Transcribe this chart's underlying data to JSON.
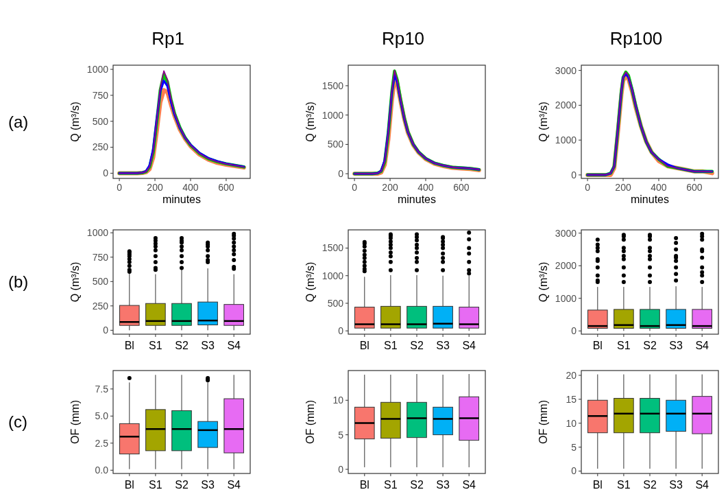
{
  "chart_data": [
    {
      "type": "line",
      "title": "Rp1",
      "annotations": [
        "(a)"
      ],
      "xlabel": "minutes",
      "ylabel": "Q (m³/s)",
      "xlim": [
        -35,
        735
      ],
      "xticks": [
        0,
        200,
        400,
        600
      ],
      "ylim": [
        -50,
        1040
      ],
      "yticks": [
        0,
        250,
        500,
        750,
        1000
      ],
      "x": [
        0,
        100,
        130,
        150,
        170,
        190,
        210,
        230,
        250,
        270,
        290,
        310,
        340,
        370,
        400,
        450,
        500,
        550,
        600,
        650,
        700
      ],
      "series": [
        {
          "color": "#ff7f50",
          "values": [
            0,
            0,
            3,
            10,
            40,
            150,
            400,
            680,
            800,
            780,
            660,
            550,
            420,
            330,
            260,
            180,
            130,
            100,
            82,
            68,
            55
          ]
        },
        {
          "color": "#00cc00",
          "values": [
            0,
            0,
            5,
            15,
            60,
            200,
            490,
            800,
            950,
            880,
            710,
            575,
            440,
            340,
            270,
            190,
            140,
            110,
            90,
            75,
            60
          ]
        },
        {
          "color": "#0000ff",
          "values": [
            0,
            0,
            6,
            20,
            75,
            230,
            520,
            790,
            890,
            840,
            690,
            565,
            435,
            340,
            275,
            195,
            145,
            115,
            92,
            77,
            62
          ]
        },
        {
          "color": "#8b008b",
          "values": [
            0,
            0,
            5,
            15,
            60,
            200,
            500,
            820,
            985,
            900,
            720,
            580,
            440,
            340,
            270,
            190,
            140,
            110,
            90,
            75,
            60
          ]
        }
      ]
    },
    {
      "type": "line",
      "title": "Rp10",
      "xlabel": "minutes",
      "ylabel": "Q (m³/s)",
      "xlim": [
        -35,
        735
      ],
      "xticks": [
        0,
        200,
        400,
        600
      ],
      "ylim": [
        -80,
        1850
      ],
      "yticks": [
        0,
        500,
        1000,
        1500
      ],
      "x": [
        0,
        100,
        130,
        150,
        170,
        190,
        210,
        225,
        240,
        260,
        280,
        300,
        330,
        360,
        400,
        450,
        500,
        550,
        600,
        650,
        700
      ],
      "series": [
        {
          "color": "#ff7f50",
          "values": [
            0,
            0,
            0,
            20,
            150,
            580,
            1250,
            1600,
            1540,
            1220,
            930,
            700,
            490,
            360,
            250,
            170,
            130,
            100,
            90,
            80,
            60
          ]
        },
        {
          "color": "#00cc00",
          "values": [
            0,
            0,
            10,
            40,
            200,
            700,
            1390,
            1750,
            1600,
            1250,
            950,
            720,
            500,
            370,
            260,
            180,
            140,
            110,
            100,
            90,
            70
          ]
        },
        {
          "color": "#0000ff",
          "values": [
            0,
            0,
            10,
            50,
            230,
            720,
            1380,
            1680,
            1560,
            1230,
            940,
            710,
            500,
            370,
            260,
            180,
            140,
            110,
            100,
            90,
            70
          ]
        },
        {
          "color": "#8b008b",
          "values": [
            0,
            0,
            10,
            40,
            200,
            700,
            1400,
            1760,
            1600,
            1250,
            950,
            720,
            500,
            370,
            260,
            180,
            140,
            110,
            100,
            90,
            70
          ]
        }
      ]
    },
    {
      "type": "line",
      "title": "Rp100",
      "xlabel": "minutes",
      "ylabel": "Q (m³/s)",
      "xlim": [
        -35,
        735
      ],
      "xticks": [
        0,
        200,
        400,
        600
      ],
      "ylim": [
        -100,
        3150
      ],
      "yticks": [
        0,
        1000,
        2000,
        3000
      ],
      "x": [
        0,
        100,
        130,
        150,
        170,
        190,
        200,
        215,
        230,
        250,
        270,
        300,
        330,
        360,
        400,
        450,
        500,
        550,
        600,
        650,
        700
      ],
      "series": [
        {
          "color": "#ff7f50",
          "values": [
            0,
            0,
            0,
            200,
            1200,
            2300,
            2700,
            2850,
            2750,
            2400,
            1950,
            1400,
            950,
            650,
            400,
            250,
            200,
            150,
            100,
            100,
            50
          ]
        },
        {
          "color": "#00cc00",
          "values": [
            0,
            0,
            50,
            250,
            1300,
            2400,
            2800,
            2950,
            2850,
            2450,
            2000,
            1400,
            950,
            650,
            450,
            250,
            200,
            150,
            100,
            100,
            100
          ]
        },
        {
          "color": "#0000ff",
          "values": [
            0,
            0,
            50,
            250,
            1300,
            2400,
            2800,
            2900,
            2800,
            2450,
            2000,
            1400,
            950,
            650,
            450,
            300,
            200,
            150,
            100,
            100,
            100
          ]
        },
        {
          "color": "#8b008b",
          "values": [
            0,
            0,
            50,
            250,
            1300,
            2400,
            2800,
            2950,
            2850,
            2450,
            2000,
            1400,
            950,
            650,
            450,
            250,
            200,
            150,
            100,
            100,
            100
          ]
        }
      ]
    },
    {
      "type": "box",
      "annotations": [
        "(b)"
      ],
      "ylabel": "Q (m³/s)",
      "categories": [
        "Bl",
        "S1",
        "S2",
        "S3",
        "S4"
      ],
      "colors": [
        "#f8766d",
        "#a3a500",
        "#00bf7d",
        "#00b0f6",
        "#e76bf3"
      ],
      "ylim": [
        -40,
        1030
      ],
      "yticks": [
        0,
        250,
        500,
        750,
        1000
      ],
      "boxes": [
        {
          "low": 0,
          "q1": 50,
          "median": 85,
          "q3": 255,
          "high": 590,
          "outliers": [
            600,
            620,
            660,
            700,
            730,
            760,
            780,
            800,
            810
          ]
        },
        {
          "low": 0,
          "q1": 50,
          "median": 95,
          "q3": 275,
          "high": 575,
          "outliers": [
            620,
            640,
            700,
            760,
            820,
            860,
            890,
            920,
            945
          ]
        },
        {
          "low": 0,
          "q1": 50,
          "median": 95,
          "q3": 275,
          "high": 630,
          "outliers": [
            640,
            700,
            760,
            820,
            860,
            900,
            920,
            945
          ]
        },
        {
          "low": 0,
          "q1": 55,
          "median": 100,
          "q3": 290,
          "high": 635,
          "outliers": [
            700,
            720,
            760,
            820,
            860,
            880,
            900
          ]
        },
        {
          "low": 0,
          "q1": 50,
          "median": 95,
          "q3": 265,
          "high": 575,
          "outliers": [
            630,
            650,
            720,
            780,
            820,
            860,
            900,
            940,
            970,
            990
          ]
        }
      ]
    },
    {
      "type": "box",
      "ylabel": "Q (m³/s)",
      "categories": [
        "Bl",
        "S1",
        "S2",
        "S3",
        "S4"
      ],
      "colors": [
        "#f8766d",
        "#a3a500",
        "#00bf7d",
        "#00b0f6",
        "#e76bf3"
      ],
      "ylim": [
        -60,
        1830
      ],
      "yticks": [
        0,
        500,
        1000,
        1500
      ],
      "boxes": [
        {
          "low": 0,
          "q1": 50,
          "median": 120,
          "q3": 430,
          "high": 980,
          "outliers": [
            1080,
            1120,
            1180,
            1250,
            1320,
            1380,
            1450,
            1530,
            1580,
            1610
          ]
        },
        {
          "low": 0,
          "q1": 50,
          "median": 120,
          "q3": 445,
          "high": 1010,
          "outliers": [
            1100,
            1250,
            1350,
            1420,
            1500,
            1560,
            1620,
            1680,
            1720,
            1750
          ]
        },
        {
          "low": 0,
          "q1": 50,
          "median": 120,
          "q3": 445,
          "high": 1010,
          "outliers": [
            1100,
            1250,
            1320,
            1420,
            1500,
            1560,
            1640,
            1700,
            1750
          ]
        },
        {
          "low": 0,
          "q1": 50,
          "median": 130,
          "q3": 445,
          "high": 1000,
          "outliers": [
            1100,
            1250,
            1320,
            1400,
            1500,
            1560,
            1620,
            1680,
            1700
          ]
        },
        {
          "low": 0,
          "q1": 50,
          "median": 120,
          "q3": 430,
          "high": 1000,
          "outliers": [
            1040,
            1100,
            1250,
            1400,
            1500,
            1660,
            1780
          ]
        }
      ]
    },
    {
      "type": "box",
      "ylabel": "Q (m³/s)",
      "categories": [
        "Bl",
        "S1",
        "S2",
        "S3",
        "S4"
      ],
      "colors": [
        "#f8766d",
        "#a3a500",
        "#00bf7d",
        "#00b0f6",
        "#e76bf3"
      ],
      "ylim": [
        -100,
        3100
      ],
      "yticks": [
        0,
        1000,
        2000,
        3000
      ],
      "boxes": [
        {
          "low": 0,
          "q1": 80,
          "median": 150,
          "q3": 640,
          "high": 1350,
          "outliers": [
            1500,
            1550,
            1700,
            1950,
            2150,
            2200,
            2450,
            2550,
            2650,
            2800
          ]
        },
        {
          "low": 0,
          "q1": 80,
          "median": 180,
          "q3": 660,
          "high": 1350,
          "outliers": [
            1500,
            1700,
            1950,
            2200,
            2300,
            2450,
            2550,
            2800,
            2900,
            2950
          ]
        },
        {
          "low": 0,
          "q1": 80,
          "median": 150,
          "q3": 660,
          "high": 1350,
          "outliers": [
            1500,
            1700,
            1950,
            2200,
            2300,
            2450,
            2550,
            2800,
            2900,
            2950
          ]
        },
        {
          "low": 0,
          "q1": 80,
          "median": 180,
          "q3": 660,
          "high": 1370,
          "outliers": [
            1550,
            1750,
            1950,
            2150,
            2250,
            2300,
            2500,
            2700,
            2850
          ]
        },
        {
          "low": 0,
          "q1": 80,
          "median": 150,
          "q3": 660,
          "high": 1350,
          "outliers": [
            1500,
            1700,
            1800,
            1950,
            2250,
            2450,
            2500,
            2800,
            2900,
            2980
          ]
        }
      ]
    },
    {
      "type": "box",
      "annotations": [
        "(c)"
      ],
      "ylabel": "OF (mm)",
      "categories": [
        "Bl",
        "S1",
        "S2",
        "S3",
        "S4"
      ],
      "colors": [
        "#f8766d",
        "#a3a500",
        "#00bf7d",
        "#00b0f6",
        "#e76bf3"
      ],
      "ylim": [
        -0.3,
        9.2
      ],
      "yticks": [
        {
          "value": 0,
          "label": "0.0"
        },
        2.5,
        {
          "value": 5,
          "label": "5.0"
        },
        7.5
      ],
      "boxes": [
        {
          "low": 0.1,
          "q1": 1.5,
          "median": 3.1,
          "q3": 4.3,
          "high": 8.1,
          "outliers": [
            8.5
          ]
        },
        {
          "low": 0.1,
          "q1": 1.8,
          "median": 3.8,
          "q3": 5.6,
          "high": 8.8
        },
        {
          "low": 0.1,
          "q1": 1.8,
          "median": 3.8,
          "q3": 5.5,
          "high": 8.8
        },
        {
          "low": 0.1,
          "q1": 2.1,
          "median": 3.7,
          "q3": 4.5,
          "high": 8.1,
          "outliers": [
            8.3,
            8.4,
            8.5
          ]
        },
        {
          "low": 0.1,
          "q1": 1.6,
          "median": 3.8,
          "q3": 6.6,
          "high": 8.8
        }
      ]
    },
    {
      "type": "box",
      "ylabel": "OF (mm)",
      "categories": [
        "Bl",
        "S1",
        "S2",
        "S3",
        "S4"
      ],
      "colors": [
        "#f8766d",
        "#a3a500",
        "#00bf7d",
        "#00b0f6",
        "#e76bf3"
      ],
      "ylim": [
        -0.6,
        14.3
      ],
      "yticks": [
        0,
        5,
        10
      ],
      "boxes": [
        {
          "low": 0.3,
          "q1": 4.4,
          "median": 6.7,
          "q3": 9.0,
          "high": 13.7
        },
        {
          "low": 0.3,
          "q1": 4.5,
          "median": 7.3,
          "q3": 9.7,
          "high": 13.7
        },
        {
          "low": 0.3,
          "q1": 4.6,
          "median": 7.4,
          "q3": 9.7,
          "high": 13.8
        },
        {
          "low": 0.3,
          "q1": 5.0,
          "median": 7.3,
          "q3": 9.0,
          "high": 13.7
        },
        {
          "low": 0.3,
          "q1": 4.2,
          "median": 7.4,
          "q3": 10.5,
          "high": 13.8
        }
      ]
    },
    {
      "type": "box",
      "ylabel": "OF (mm)",
      "categories": [
        "Bl",
        "S1",
        "S2",
        "S3",
        "S4"
      ],
      "colors": [
        "#f8766d",
        "#a3a500",
        "#00bf7d",
        "#00b0f6",
        "#e76bf3"
      ],
      "ylim": [
        -0.5,
        21
      ],
      "yticks": [
        0,
        5,
        10,
        15,
        20
      ],
      "boxes": [
        {
          "low": 0.5,
          "q1": 8,
          "median": 11.5,
          "q3": 14.8,
          "high": 20.2
        },
        {
          "low": 0.5,
          "q1": 8,
          "median": 12,
          "q3": 15.2,
          "high": 20.2
        },
        {
          "low": 0.5,
          "q1": 8,
          "median": 12,
          "q3": 15.2,
          "high": 20.2
        },
        {
          "low": 0.5,
          "q1": 8.3,
          "median": 12,
          "q3": 14.8,
          "high": 20.2
        },
        {
          "low": 0.5,
          "q1": 7.8,
          "median": 12,
          "q3": 15.6,
          "high": 20.2
        }
      ]
    }
  ]
}
